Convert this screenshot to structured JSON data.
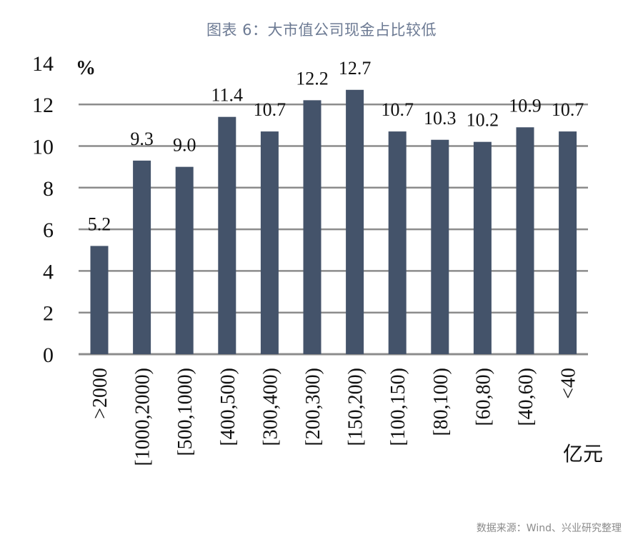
{
  "header": {
    "title": "图表 6：大市值公司现金占比较低"
  },
  "footer": {
    "source": "数据来源：Wind、兴业研究整理"
  },
  "chart_data": {
    "type": "bar",
    "title": "图表 6：大市值公司现金占比较低",
    "xlabel": "亿元",
    "ylabel": "%",
    "ylim": [
      0,
      14
    ],
    "yticks": [
      0,
      2,
      4,
      6,
      8,
      10,
      12,
      14
    ],
    "grid": true,
    "legend": null,
    "categories": [
      ">2000",
      "[1000,2000)",
      "[500,1000)",
      "[400,500)",
      "[300,400)",
      "[200,300)",
      "[150,200)",
      "[100,150)",
      "[80,100)",
      "[60,80)",
      "[40,60)",
      "<40"
    ],
    "values": [
      5.2,
      9.3,
      9.0,
      11.4,
      10.7,
      12.2,
      12.7,
      10.7,
      10.3,
      10.2,
      10.9,
      10.7
    ],
    "value_labels": [
      "5.2",
      "9.3",
      "9.0",
      "11.4",
      "10.7",
      "12.2",
      "12.7",
      "10.7",
      "10.3",
      "10.2",
      "10.9",
      "10.7"
    ],
    "bar_color": "#44536a",
    "grid_color": "#8c8c8c",
    "source": "数据来源：Wind、兴业研究整理"
  }
}
